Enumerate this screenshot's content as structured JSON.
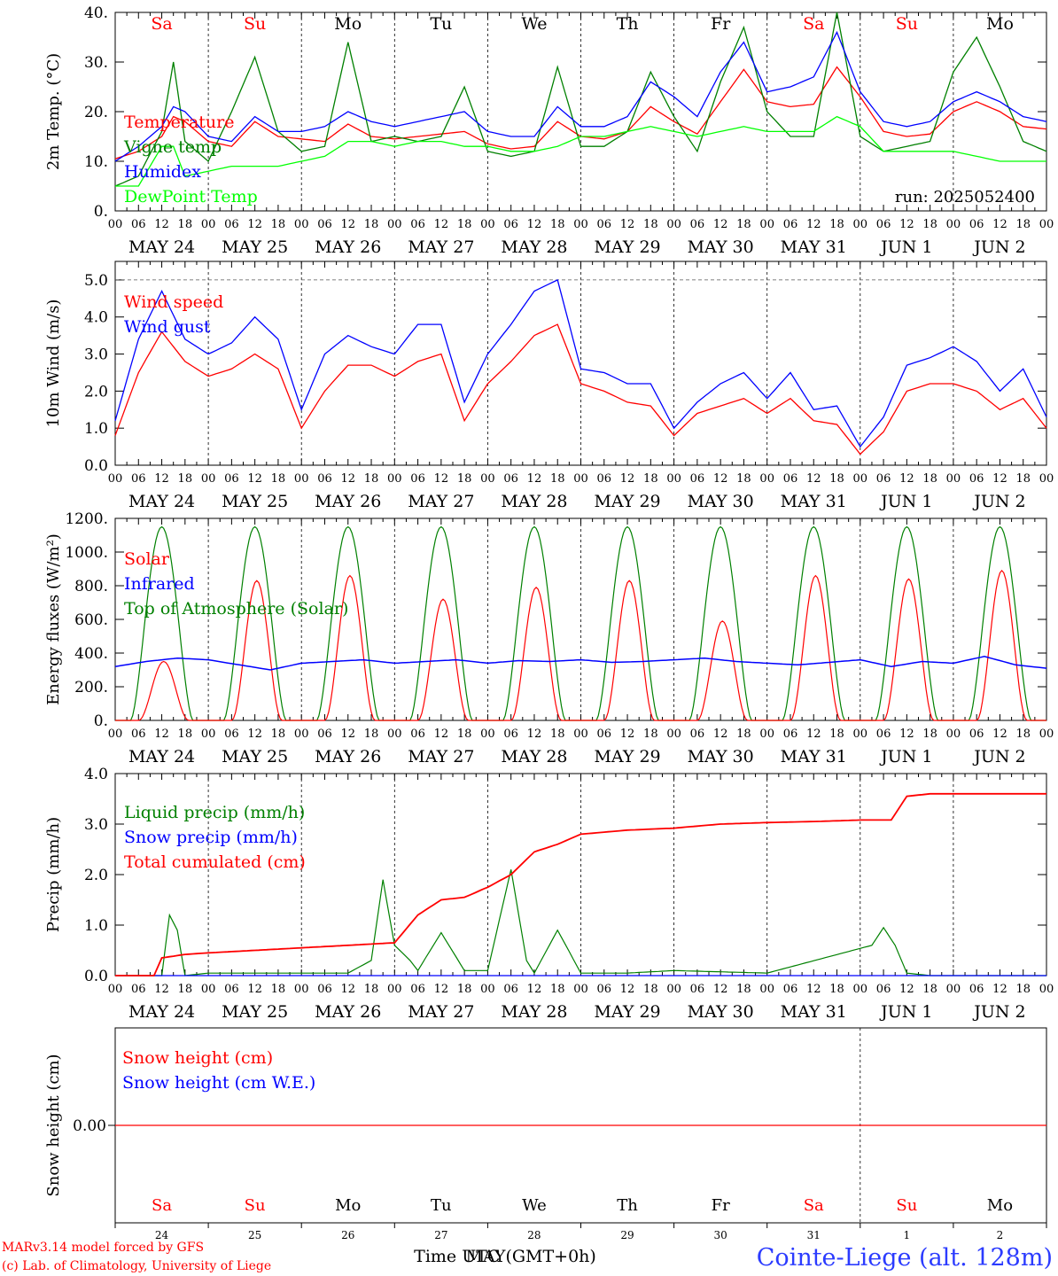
{
  "run_label": "run: 2025052400",
  "footer": {
    "model": "MARv3.14 model forced by GFS",
    "credit": "(c) Lab. of Climatology, University of Liege",
    "xlabel_a": "Time UTC (GMT+0h)",
    "xlabel_b": "MAY",
    "station": "Cointe-Liege (alt. 128m)"
  },
  "days": {
    "weekday": [
      "Sa",
      "Su",
      "Mo",
      "Tu",
      "We",
      "Th",
      "Fr",
      "Sa",
      "Su",
      "Mo"
    ],
    "date_labels": [
      "MAY 24",
      "MAY 25",
      "MAY 26",
      "MAY 27",
      "MAY 28",
      "MAY 29",
      "MAY 30",
      "MAY 31",
      "JUN  1",
      "JUN  2"
    ],
    "day_numbers": [
      "24",
      "25",
      "26",
      "27",
      "28",
      "29",
      "30",
      "31",
      "1",
      "2"
    ],
    "hour_ticks": [
      "00",
      "06",
      "12",
      "18"
    ],
    "weekend_color": "#ff0000",
    "weekday_color": "#000000"
  },
  "chart_data": [
    {
      "type": "line",
      "ylabel": "2m Temp. (°C)",
      "ylim": [
        0,
        40
      ],
      "yticks": [
        "0.",
        "10.",
        "20.",
        "30.",
        "40."
      ],
      "x_hours": [
        0,
        6,
        12,
        15,
        18,
        24,
        30,
        36,
        42,
        48,
        54,
        60,
        66,
        72,
        78,
        84,
        90,
        96,
        102,
        108,
        114,
        120,
        126,
        132,
        138,
        144,
        150,
        156,
        162,
        168,
        174,
        180,
        186,
        192,
        198,
        204,
        210,
        216,
        222,
        228,
        234,
        240
      ],
      "series": [
        {
          "name": "Temperature",
          "color": "#ff0000",
          "values": [
            10.5,
            12,
            15,
            19,
            18,
            14,
            13,
            18,
            15,
            14.5,
            14,
            17.5,
            15,
            14.5,
            15,
            15.5,
            16,
            13.5,
            12.5,
            13,
            18,
            15,
            14.5,
            16,
            21,
            18,
            15.5,
            22,
            28.5,
            22,
            21,
            21.5,
            29,
            23,
            16,
            15,
            15.5,
            20,
            22,
            20,
            17,
            16.5
          ]
        },
        {
          "name": "Vigne temp",
          "color": "#008000",
          "values": [
            5,
            7,
            16,
            30,
            14,
            10,
            20,
            31,
            16,
            12,
            13,
            34,
            14,
            15,
            14,
            15,
            25,
            12,
            11,
            12,
            29,
            13,
            13,
            16,
            28,
            19,
            12,
            26,
            37,
            20,
            15,
            15,
            40,
            15,
            12,
            13,
            14,
            28,
            35,
            25,
            14,
            12
          ]
        },
        {
          "name": "Humidex",
          "color": "#0000ff",
          "values": [
            10,
            13,
            17,
            21,
            20,
            15,
            14,
            19,
            16,
            16,
            17,
            20,
            18,
            17,
            18,
            19,
            20,
            16,
            15,
            15,
            21,
            17,
            17,
            19,
            26,
            23,
            19,
            28,
            34,
            24,
            25,
            27,
            36,
            24,
            18,
            17,
            18,
            22,
            24,
            22,
            19,
            18
          ]
        },
        {
          "name": "DewPoint Temp",
          "color": "#00ff00",
          "values": [
            5,
            5,
            13,
            13,
            7,
            8,
            9,
            9,
            9,
            10,
            11,
            14,
            14,
            13,
            14,
            14,
            13,
            13,
            12,
            12,
            13,
            15,
            15,
            16,
            17,
            16,
            15,
            16,
            17,
            16,
            16,
            16,
            19,
            17,
            12,
            12,
            12,
            12,
            11,
            10,
            10,
            10
          ]
        }
      ]
    },
    {
      "type": "line",
      "ylabel": "10m Wind (m/s)",
      "ylim": [
        0,
        5.5
      ],
      "yticks": [
        "0.0",
        "1.0",
        "2.0",
        "3.0",
        "4.0",
        "5.0"
      ],
      "x_hours": [
        0,
        6,
        12,
        18,
        24,
        30,
        36,
        42,
        48,
        54,
        60,
        66,
        72,
        78,
        84,
        90,
        96,
        102,
        108,
        114,
        120,
        126,
        132,
        138,
        144,
        150,
        156,
        162,
        168,
        174,
        180,
        186,
        192,
        198,
        204,
        210,
        216,
        222,
        228,
        234,
        240
      ],
      "series": [
        {
          "name": "Wind speed",
          "color": "#ff0000",
          "values": [
            0.8,
            2.5,
            3.6,
            2.8,
            2.4,
            2.6,
            3.0,
            2.6,
            1.0,
            2.0,
            2.7,
            2.7,
            2.4,
            2.8,
            3.0,
            1.2,
            2.2,
            2.8,
            3.5,
            3.8,
            2.2,
            2.0,
            1.7,
            1.6,
            0.8,
            1.4,
            1.6,
            1.8,
            1.4,
            1.8,
            1.2,
            1.1,
            0.3,
            0.9,
            2.0,
            2.2,
            2.2,
            2.0,
            1.5,
            1.8,
            1.0
          ]
        },
        {
          "name": "Wind gust",
          "color": "#0000ff",
          "values": [
            1.2,
            3.4,
            4.7,
            3.4,
            3.0,
            3.3,
            4.0,
            3.4,
            1.5,
            3.0,
            3.5,
            3.2,
            3.0,
            3.8,
            3.8,
            1.7,
            3.0,
            3.8,
            4.7,
            5.0,
            2.6,
            2.5,
            2.2,
            2.2,
            1.0,
            1.7,
            2.2,
            2.5,
            1.8,
            2.5,
            1.5,
            1.6,
            0.5,
            1.3,
            2.7,
            2.9,
            3.2,
            2.8,
            2.0,
            2.6,
            1.3
          ]
        }
      ]
    },
    {
      "type": "line",
      "ylabel": "Energy fluxes (W/m²)",
      "ylim": [
        0,
        1200
      ],
      "yticks": [
        "0.",
        "200.",
        "400.",
        "600.",
        "800.",
        "1000.",
        "1200."
      ],
      "series": [
        {
          "name": "Solar",
          "color": "#ff0000",
          "peaks": [
            350,
            830,
            860,
            720,
            790,
            830,
            590,
            860,
            840,
            890
          ]
        },
        {
          "name": "Infrared",
          "color": "#0000ff",
          "values": [
            320,
            350,
            370,
            360,
            330,
            300,
            340,
            350,
            360,
            340,
            350,
            360,
            340,
            355,
            350,
            360,
            345,
            350,
            360,
            370,
            350,
            340,
            330,
            345,
            360,
            320,
            350,
            340,
            380,
            330,
            310
          ]
        },
        {
          "name": "Top of Atmosphere (Solar)",
          "color": "#008000",
          "peak": 1150
        }
      ]
    },
    {
      "type": "line",
      "ylabel": "Precip (mm/h)",
      "ylim": [
        0,
        4
      ],
      "yticks": [
        "0.0",
        "1.0",
        "2.0",
        "3.0",
        "4.0"
      ],
      "series": [
        {
          "name": "Liquid precip (mm/h)",
          "color": "#008000",
          "x_hours": [
            0,
            12,
            14,
            16,
            18,
            24,
            36,
            48,
            60,
            66,
            69,
            72,
            76,
            78,
            84,
            90,
            96,
            102,
            106,
            108,
            114,
            120,
            126,
            132,
            144,
            168,
            195,
            198,
            201,
            204,
            210,
            240
          ],
          "values": [
            0,
            0,
            1.2,
            0.9,
            0,
            0.05,
            0.05,
            0.05,
            0.05,
            0.3,
            1.9,
            0.6,
            0.3,
            0.1,
            0.85,
            0.1,
            0.1,
            2.1,
            0.3,
            0.05,
            0.9,
            0.05,
            0.05,
            0.05,
            0.1,
            0.05,
            0.6,
            0.95,
            0.6,
            0.05,
            0,
            0
          ]
        },
        {
          "name": "Snow precip (mm/h)",
          "color": "#0000ff",
          "x_hours": [
            0,
            240
          ],
          "values": [
            0,
            0
          ]
        },
        {
          "name": "Total cumulated (cm)",
          "color": "#ff0000",
          "x_hours": [
            0,
            10,
            12,
            18,
            24,
            48,
            72,
            78,
            84,
            90,
            96,
            102,
            108,
            114,
            120,
            132,
            144,
            156,
            168,
            180,
            192,
            200,
            204,
            210,
            216,
            240
          ],
          "values": [
            0,
            0,
            0.35,
            0.42,
            0.45,
            0.55,
            0.65,
            1.2,
            1.5,
            1.55,
            1.75,
            2.0,
            2.45,
            2.6,
            2.8,
            2.88,
            2.92,
            3.0,
            3.03,
            3.05,
            3.08,
            3.08,
            3.55,
            3.6,
            3.6,
            3.6
          ]
        }
      ]
    },
    {
      "type": "line",
      "ylabel": "Snow height (cm)",
      "yticks": [
        "0.00"
      ],
      "series": [
        {
          "name": "Snow height (cm)",
          "color": "#ff0000",
          "values": [
            0,
            0
          ]
        },
        {
          "name": "Snow height (cm W.E.)",
          "color": "#0000ff",
          "values": [
            0,
            0
          ]
        }
      ]
    }
  ]
}
